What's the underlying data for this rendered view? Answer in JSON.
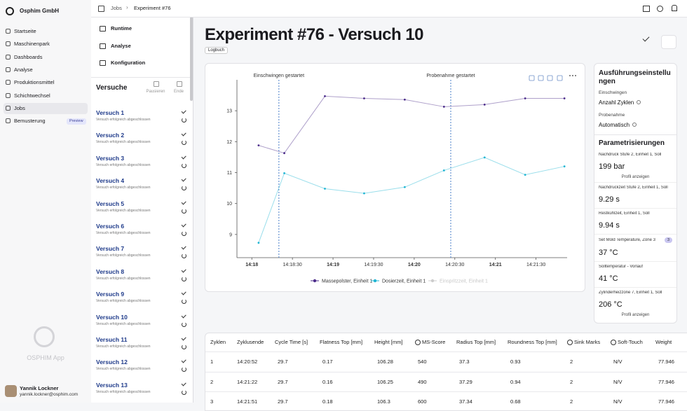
{
  "sidebar": {
    "org": "Osphim GmbH",
    "nav": [
      "Startseite",
      "Maschinenpark",
      "Dashboards",
      "Analyse",
      "Produktionsmittel",
      "Schichtwechsel",
      "Jobs",
      "Bemusterung"
    ],
    "nav_badge": "Preview",
    "app_name": "OSPHIM App",
    "user": {
      "name": "Yannik Lockner",
      "email": "yannik.lockner@osphim.com"
    }
  },
  "breadcrumb": [
    "Jobs",
    "Experiment #76"
  ],
  "submenu": [
    "Runtime",
    "Analyse",
    "Konfiguration"
  ],
  "versuche": {
    "title": "Versuche",
    "actions": [
      "Pausieren",
      "Ende"
    ],
    "items": [
      {
        "name": "Versuch 1",
        "status": "Versuch erfolgreich abgeschlossen"
      },
      {
        "name": "Versuch 2",
        "status": "Versuch erfolgreich abgeschlossen"
      },
      {
        "name": "Versuch 3",
        "status": "Versuch erfolgreich abgeschlossen"
      },
      {
        "name": "Versuch 4",
        "status": "Versuch erfolgreich abgeschlossen"
      },
      {
        "name": "Versuch 5",
        "status": "Versuch erfolgreich abgeschlossen"
      },
      {
        "name": "Versuch 6",
        "status": "Versuch erfolgreich abgeschlossen"
      },
      {
        "name": "Versuch 7",
        "status": "Versuch erfolgreich abgeschlossen"
      },
      {
        "name": "Versuch 8",
        "status": "Versuch erfolgreich abgeschlossen"
      },
      {
        "name": "Versuch 9",
        "status": "Versuch erfolgreich abgeschlossen"
      },
      {
        "name": "Versuch 10",
        "status": "Versuch erfolgreich abgeschlossen"
      },
      {
        "name": "Versuch 11",
        "status": "Versuch erfolgreich abgeschlossen"
      },
      {
        "name": "Versuch 12",
        "status": "Versuch erfolgreich abgeschlossen"
      },
      {
        "name": "Versuch 13",
        "status": "Versuch erfolgreich abgeschlossen"
      }
    ]
  },
  "page": {
    "title": "Experiment #76 - Versuch 10",
    "badge": "Logbuch"
  },
  "chart_data": {
    "type": "line",
    "x": [
      "14:18:05",
      "14:18:24",
      "14:18:54",
      "14:19:23",
      "14:19:53",
      "14:20:22",
      "14:20:52",
      "14:21:22",
      "14:21:51"
    ],
    "series": [
      {
        "name": "Massepolster, Einheit 1",
        "color": "#4b2c8a",
        "values": [
          11.88,
          11.63,
          13.47,
          13.4,
          13.36,
          13.13,
          13.2,
          13.4,
          13.4
        ]
      },
      {
        "name": "Dosierzeit, Einheit 1",
        "color": "#1fb5d3",
        "values": [
          8.73,
          10.98,
          10.48,
          10.33,
          10.53,
          11.07,
          11.49,
          10.93,
          11.2
        ]
      },
      {
        "name": "Einspritzzeit, Einheit 1",
        "color": "#cccccc",
        "hidden": true,
        "values": [
          null,
          null,
          null,
          null,
          null,
          null,
          null,
          null,
          null
        ]
      }
    ],
    "xlim": [
      "14:17:49",
      "14:21:53"
    ],
    "xticks": [
      {
        "value": "14:18:00",
        "label": "14:18"
      },
      "14:18:30",
      {
        "value": "14:19:00",
        "label": "14:19"
      },
      "14:19:30",
      {
        "value": "14:20:00",
        "label": "14:20"
      },
      "14:20:30",
      {
        "value": "14:21:00",
        "label": "14:21"
      },
      "14:21:30"
    ],
    "ylim": [
      8.25,
      14
    ],
    "yticks": [
      9,
      10,
      11,
      12,
      13
    ],
    "annotations": [
      {
        "x": "14:18:20",
        "label": "Einschwingen gestartet"
      },
      {
        "x": "14:20:27",
        "label": "Probenahme gestartet"
      }
    ],
    "legend": "bottom"
  },
  "settings": {
    "title": "Ausführungseinstellungen",
    "items": [
      {
        "label": "Einschwingen",
        "value": "Anzahl Zyklen"
      },
      {
        "label": "Probenahme",
        "value": "Automatisch"
      }
    ]
  },
  "parameters": {
    "title": "Parametrisierungen",
    "items": [
      {
        "label": "Nachdruck Stufe 2, Einheit 1, Soll",
        "value": "199",
        "unit": "bar",
        "link": "Profil anzeigen"
      },
      {
        "label": "Nachdruckzeit Stufe 2, Einheit 1, Soll",
        "value": "9.29",
        "unit": "s"
      },
      {
        "label": "Restkühlzeit, Einheit 1, Soll",
        "value": "9.94",
        "unit": "s"
      },
      {
        "label": "Set Mold Temperature, Zone 3",
        "badge": "3",
        "value": "37",
        "unit": "°C"
      },
      {
        "label": "Solltemperatur - Vorlauf",
        "value": "41",
        "unit": "°C"
      },
      {
        "label": "Zylinderheizzone 7, Einheit 1, Soll",
        "value": "206",
        "unit": "°C",
        "link": "Profil anzeigen"
      }
    ]
  },
  "table": {
    "columns": [
      "Zyklen",
      "Zyklusende",
      "Cycle Time [s]",
      "Flatness Top [mm]",
      "Height [mm]",
      "MS-Score",
      "Radius Top [mm]",
      "Roundness Top [mm]",
      "Sink Marks",
      "Soft-Touch",
      "Weight"
    ],
    "rows": [
      [
        "1",
        "14:20:52",
        "29.7",
        "0.17",
        "106.28",
        "540",
        "37.3",
        "0.93",
        "2",
        "N/V",
        "77.946"
      ],
      [
        "2",
        "14:21:22",
        "29.7",
        "0.16",
        "106.25",
        "490",
        "37.29",
        "0.94",
        "2",
        "N/V",
        "77.946"
      ],
      [
        "3",
        "14:21:51",
        "29.7",
        "0.18",
        "106.3",
        "600",
        "37.34",
        "0.68",
        "2",
        "N/V",
        "77.946"
      ]
    ]
  }
}
